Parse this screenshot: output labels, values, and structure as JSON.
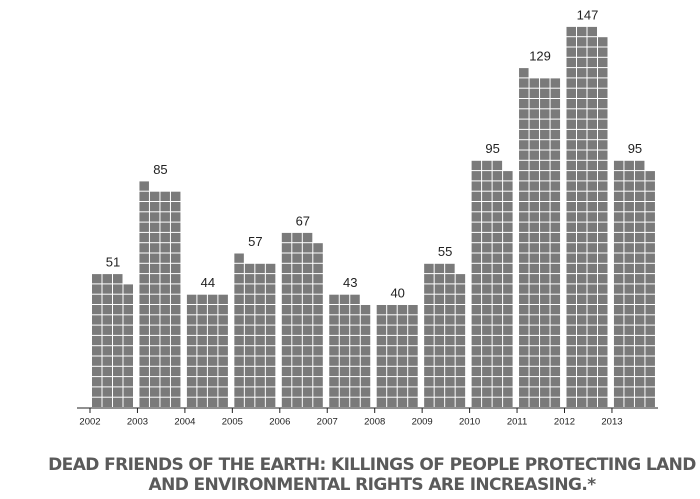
{
  "chart_data": {
    "type": "unit-column",
    "title": [
      "DEAD FRIENDS OF THE EARTH: KILLINGS OF PEOPLE PROTECTING LAND",
      "AND ENVIRONMENTAL RIGHTS ARE INCREASING.*"
    ],
    "categories": [
      "2002",
      "2003",
      "2004",
      "2005",
      "2006",
      "2007",
      "2008",
      "2009",
      "2010",
      "2011",
      "2012",
      "2013"
    ],
    "values": [
      51,
      85,
      44,
      57,
      67,
      43,
      40,
      55,
      95,
      129,
      147,
      95
    ],
    "color": "#7a7a7a"
  }
}
